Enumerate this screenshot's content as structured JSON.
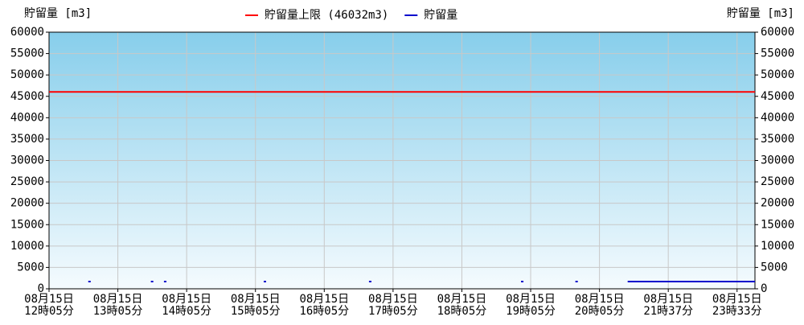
{
  "chart_data": {
    "type": "line",
    "y_label": "貯留量 [m3]",
    "y2_label": "貯留量 [m3]",
    "legend_position": "top",
    "grid": true,
    "xlim": [
      0,
      10.26
    ],
    "xticks": [
      {
        "value": 0,
        "label": [
          "08月15日",
          "12時05分"
        ]
      },
      {
        "value": 1,
        "label": [
          "08月15日",
          "13時05分"
        ]
      },
      {
        "value": 2,
        "label": [
          "08月15日",
          "14時05分"
        ]
      },
      {
        "value": 3,
        "label": [
          "08月15日",
          "15時05分"
        ]
      },
      {
        "value": 4,
        "label": [
          "08月15日",
          "16時05分"
        ]
      },
      {
        "value": 5,
        "label": [
          "08月15日",
          "17時05分"
        ]
      },
      {
        "value": 6,
        "label": [
          "08月15日",
          "18時05分"
        ]
      },
      {
        "value": 7,
        "label": [
          "08月15日",
          "19時05分"
        ]
      },
      {
        "value": 8,
        "label": [
          "08月15日",
          "20時05分"
        ]
      },
      {
        "value": 9,
        "label": [
          "08月15日",
          "21時37分"
        ]
      },
      {
        "value": 10,
        "label": [
          "08月15日",
          "23時33分"
        ]
      }
    ],
    "ylim": [
      0,
      60000
    ],
    "yticks": [
      0,
      5000,
      10000,
      15000,
      20000,
      25000,
      30000,
      35000,
      40000,
      45000,
      50000,
      55000,
      60000
    ],
    "y2lim": [
      0,
      60000
    ],
    "y2ticks": [
      0,
      5000,
      10000,
      15000,
      20000,
      25000,
      30000,
      35000,
      40000,
      45000,
      50000,
      55000,
      60000
    ],
    "series": [
      {
        "name": "貯留量上限 (46032m3)",
        "color": "#ff0000",
        "x": [
          0,
          10.26
        ],
        "values": [
          46032,
          46032
        ]
      },
      {
        "name": "貯留量",
        "color": "#0000cc",
        "x": [
          0.57,
          1.0,
          1.48,
          1.58,
          1.67,
          2.4,
          3.12,
          3.9,
          4.65,
          5.8,
          6.86,
          7.2,
          7.65,
          8.0,
          8.41,
          10.26
        ],
        "values": [
          1700,
          null,
          1700,
          null,
          1700,
          null,
          1700,
          null,
          1700,
          null,
          1700,
          null,
          1700,
          null,
          1700,
          1700
        ]
      }
    ]
  }
}
